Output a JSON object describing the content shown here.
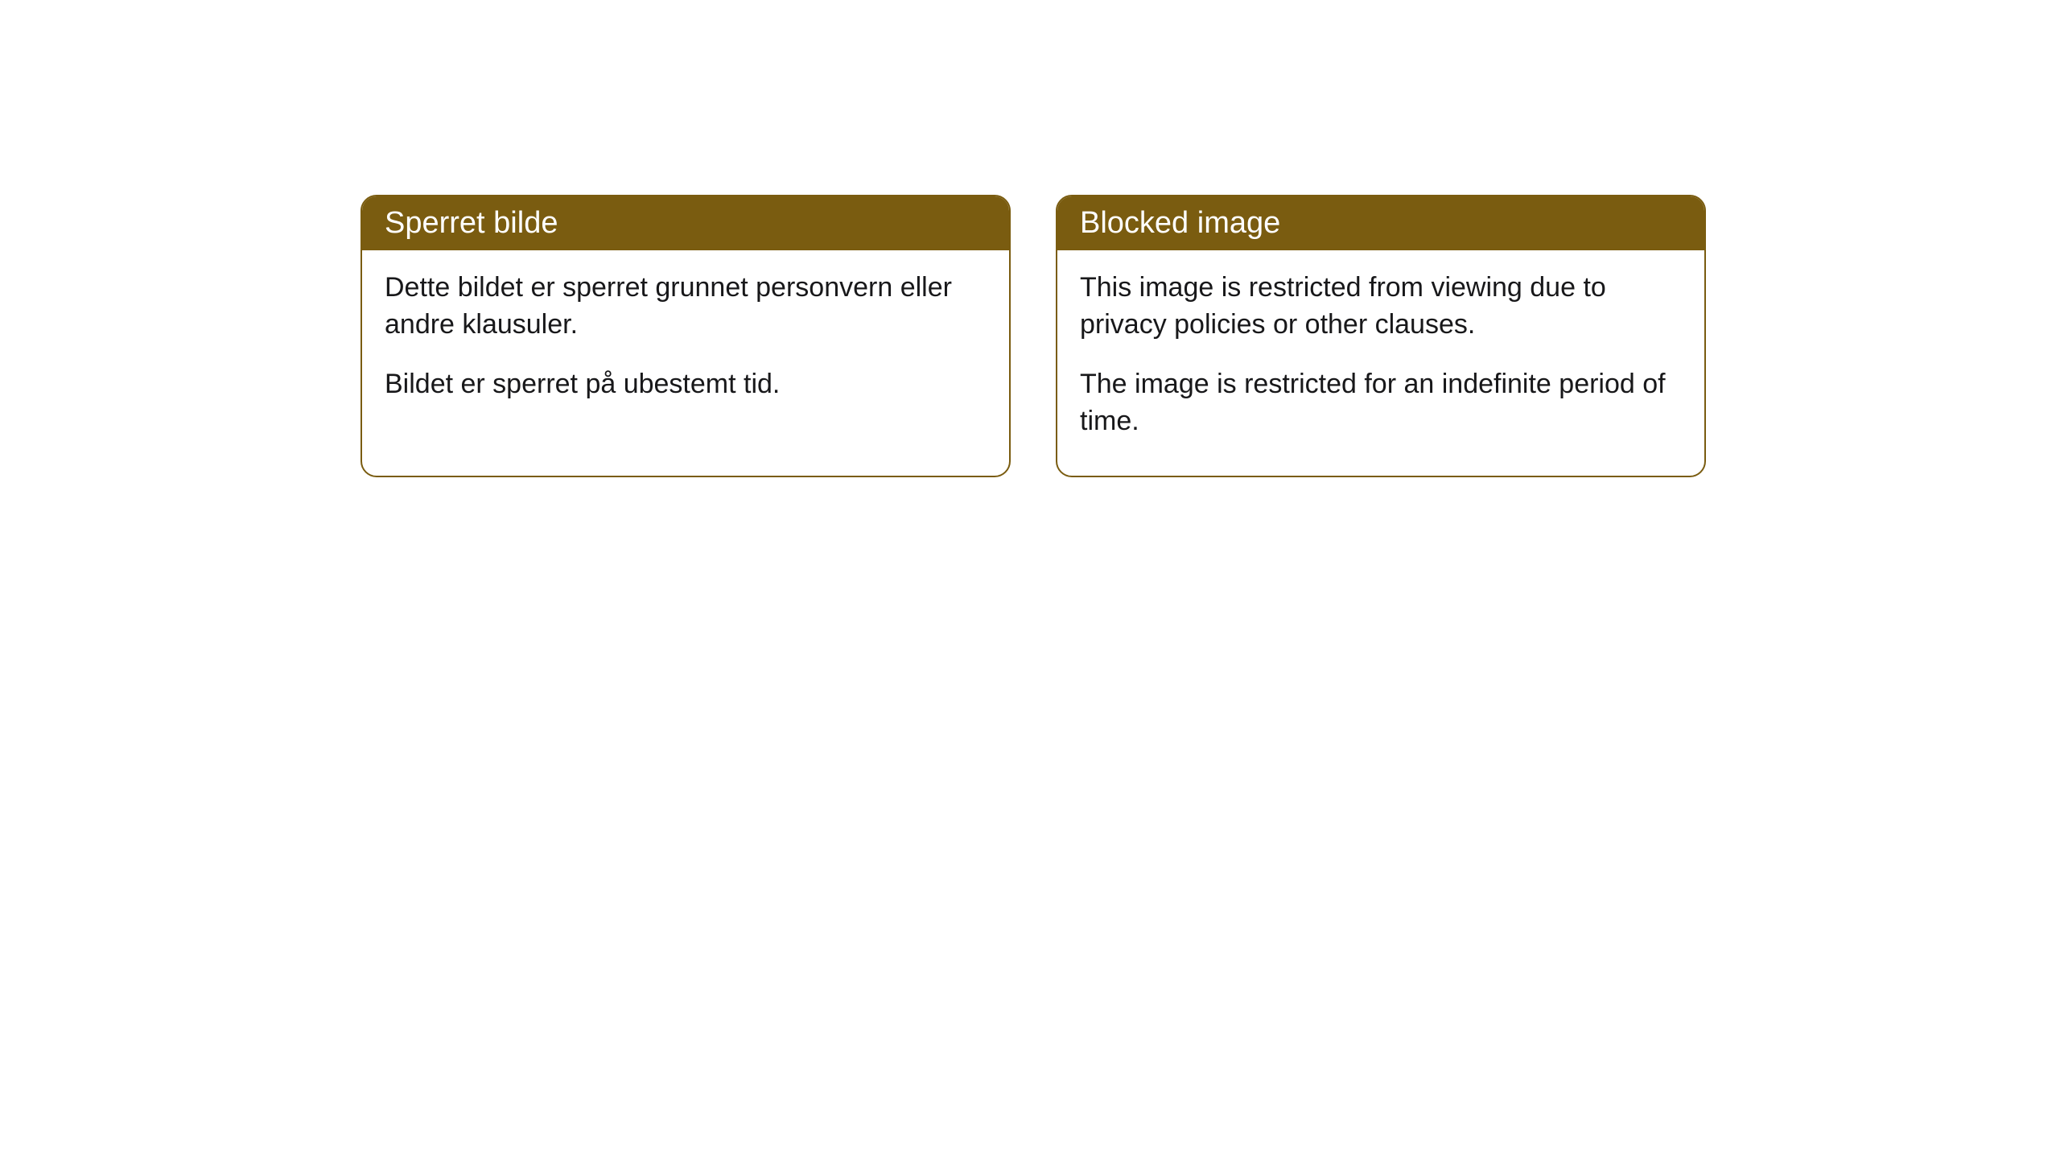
{
  "cards": [
    {
      "title": "Sperret bilde",
      "paragraph1": "Dette bildet er sperret grunnet personvern eller andre klausuler.",
      "paragraph2": "Bildet er sperret på ubestemt tid."
    },
    {
      "title": "Blocked image",
      "paragraph1": "This image is restricted from viewing due to privacy policies or other clauses.",
      "paragraph2": "The image is restricted for an indefinite period of time."
    }
  ],
  "style": {
    "header_background": "#7a5c10",
    "header_text_color": "#ffffff",
    "border_color": "#7a5c10",
    "body_text_color": "#18181a",
    "card_background": "#ffffff",
    "page_background": "#ffffff",
    "border_radius": 20,
    "header_fontsize": 38,
    "body_fontsize": 34
  }
}
